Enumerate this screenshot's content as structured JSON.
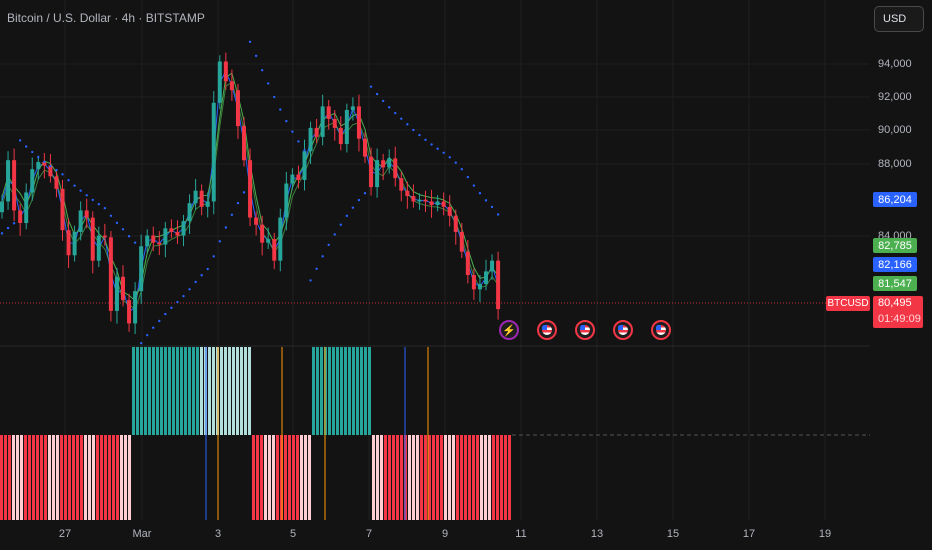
{
  "header": {
    "symbol_title": "Bitcoin / U.S. Dollar · 4h · BITSTAMP",
    "currency_button": "USD"
  },
  "price_axis": {
    "ticks": [
      "94,000",
      "92,000",
      "90,000",
      "88,000",
      "84,000"
    ],
    "labels": {
      "sar": "86,204",
      "ma_top": "82,785",
      "ma_mid": "82,166",
      "ma_low": "81,547",
      "symbol_tag": "BTCUSD",
      "last_price": "80,495",
      "countdown": "01:49:09"
    }
  },
  "time_axis": {
    "ticks": [
      "27",
      "Mar",
      "3",
      "5",
      "7",
      "9",
      "11",
      "13",
      "15",
      "17",
      "19"
    ]
  },
  "events": [
    {
      "icon": "lightning-icon"
    },
    {
      "icon": "us-flag-icon"
    },
    {
      "icon": "us-flag-icon"
    },
    {
      "icon": "us-flag-icon"
    },
    {
      "icon": "us-flag-icon"
    }
  ],
  "colors": {
    "up": "#26a69a",
    "down": "#f23645",
    "sar": "#2962ff",
    "hist_teal": "#26a69a",
    "hist_teal_light": "#b2dfdb",
    "hist_red": "#f23645",
    "hist_red_light": "#ffcdd2",
    "ma_green": "#4caf50",
    "ma_blue": "#2962ff",
    "ma_gold": "#ff9800"
  },
  "chart_data": {
    "type": "candlestick",
    "symbol": "BTCUSD",
    "interval": "4h",
    "y_range": [
      79000,
      95500
    ],
    "ohlc_close_path": [
      86500,
      88800,
      86000,
      85300,
      87000,
      88300,
      88700,
      88500,
      87900,
      87200,
      84900,
      83500,
      84800,
      86000,
      85600,
      83200,
      84600,
      84500,
      80400,
      82300,
      81000,
      79700,
      81500,
      84000,
      84600,
      84200,
      84100,
      85000,
      84800,
      84600,
      85400,
      86400,
      87100,
      86200,
      86500,
      92000,
      94300,
      93200,
      92700,
      90700,
      88800,
      85600,
      85200,
      84200,
      84400,
      83200,
      85600,
      87500,
      88000,
      87700,
      89300,
      90600,
      90100,
      91800,
      91100,
      90600,
      89700,
      91600,
      91800,
      90000,
      89000,
      87300,
      88800,
      88400,
      88900,
      87800,
      87100,
      86800,
      86500,
      86600,
      86500,
      86300,
      86500,
      86200,
      85700,
      84800,
      83700,
      82400,
      81600,
      81900,
      82600,
      83200,
      80500
    ],
    "histogram": {
      "upper_segment": "teal bars roughly Feb 28 - Mar 3 and Mar 5 - Mar 7",
      "lower_segment": "red bars roughly Feb 25 - Feb 28, Mar 3 - Mar 5, Mar 7 - Mar 10"
    }
  }
}
